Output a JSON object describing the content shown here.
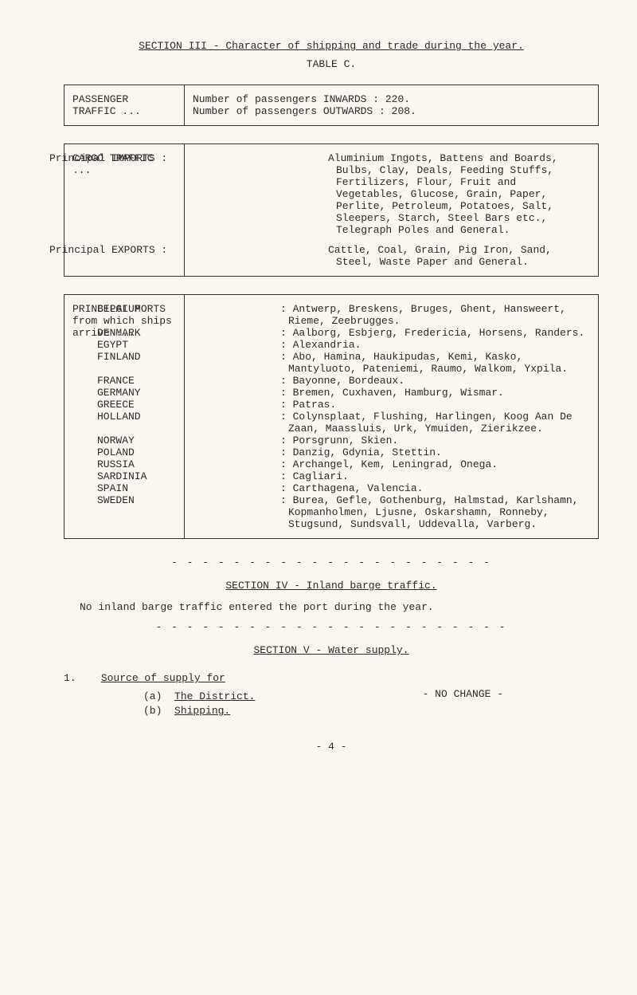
{
  "header": {
    "section_line": "SECTION III - Character of shipping and trade during the year.",
    "table_label": "TABLE C."
  },
  "table1": {
    "left": "PASSENGER TRAFFIC ...",
    "rows": [
      "Number of passengers INWARDS   :  220.",
      "Number of passengers OUTWARDS  :  208."
    ]
  },
  "table2": {
    "left": "CARGO TRAFFIC ...",
    "imports_label": "Principal IMPORTS :",
    "imports_text": "Aluminium Ingots, Battens and Boards, Bulbs, Clay, Deals, Feeding Stuffs, Fertilizers, Flour, Fruit and Vegetables, Glucose, Grain, Paper, Perlite, Petroleum, Potatoes, Salt, Sleepers, Starch, Steel Bars etc., Telegraph Poles and General.",
    "exports_label": "Principal EXPORTS :",
    "exports_text": "Cattle, Coal, Grain, Pig Iron, Sand, Steel, Waste Paper and General."
  },
  "table3": {
    "left": "PRINCIPAL PORTS from which ships arrive ...",
    "rows": [
      {
        "c": "BELGIUM",
        "t": "Antwerp, Breskens, Bruges, Ghent, Hansweert, Rieme, Zeebrugges."
      },
      {
        "c": "DENMARK",
        "t": "Aalborg, Esbjerg, Fredericia, Horsens, Randers."
      },
      {
        "c": "EGYPT",
        "t": "Alexandria."
      },
      {
        "c": "FINLAND",
        "t": "Abo, Hamina, Haukipudas, Kemi, Kasko, Mantyluoto, Pateniemi, Raumo, Walkom, Yxpila."
      },
      {
        "c": "FRANCE",
        "t": "Bayonne, Bordeaux."
      },
      {
        "c": "GERMANY",
        "t": "Bremen, Cuxhaven, Hamburg, Wismar."
      },
      {
        "c": "GREECE",
        "t": "Patras."
      },
      {
        "c": "HOLLAND",
        "t": "Colynsplaat, Flushing, Harlingen, Koog Aan De Zaan, Maassluis, Urk, Ymuiden, Zierikzee."
      },
      {
        "c": "NORWAY",
        "t": "Porsgrunn, Skien."
      },
      {
        "c": "POLAND",
        "t": "Danzig, Gdynia, Stettin."
      },
      {
        "c": "RUSSIA",
        "t": "Archangel, Kem, Leningrad, Onega."
      },
      {
        "c": "SARDINIA",
        "t": "Cagliari."
      },
      {
        "c": "SPAIN",
        "t": "Carthagena, Valencia."
      },
      {
        "c": "SWEDEN",
        "t": "Burea, Gefle, Gothenburg, Halmstad, Karlshamn, Kopmanholmen, Ljusne, Oskarshamn, Ronneby, Stugsund, Sundsvall, Uddevalla, Varberg."
      }
    ]
  },
  "dashes": "- - - - - - - - - - - - - - - - - - - - -",
  "sec4": {
    "title": "SECTION IV - Inland barge traffic.",
    "para": "No inland barge traffic entered the port during the year."
  },
  "dashes2": "- - - - - - - - - - - - - - - - - - - - - - -",
  "sec5": {
    "title": "SECTION V - Water supply."
  },
  "supply": {
    "num": "1.",
    "heading": "Source of supply for",
    "a_label": "(a)",
    "a_text": "The District.",
    "b_label": "(b)",
    "b_text": "Shipping.",
    "nochange": "- NO CHANGE -"
  },
  "footer": "- 4 -"
}
